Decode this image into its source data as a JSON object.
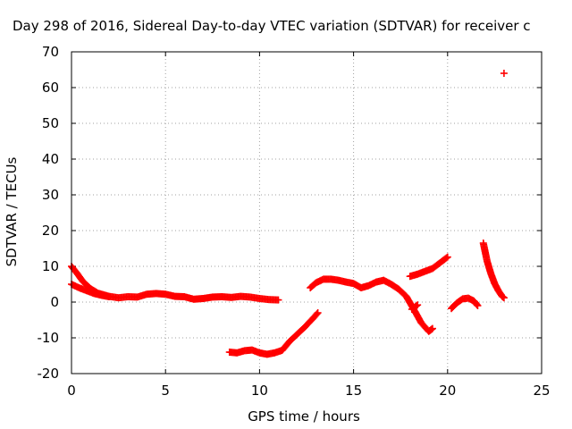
{
  "chart_data": {
    "type": "scatter",
    "title": "Day 298 of 2016, Sidereal Day-to-day VTEC variation (SDTVAR) for receiver c",
    "xlabel": "GPS time / hours",
    "ylabel": "SDTVAR / TECUs",
    "xlim": [
      0,
      25
    ],
    "ylim": [
      -20,
      70
    ],
    "xticks": [
      0,
      5,
      10,
      15,
      20,
      25
    ],
    "yticks": [
      -20,
      -10,
      0,
      10,
      20,
      30,
      40,
      50,
      60,
      70
    ],
    "grid": true,
    "marker": "plus",
    "color": "#ff0000",
    "series": [
      {
        "name": "s1",
        "points": [
          [
            0.0,
            10.0
          ],
          [
            0.3,
            8.0
          ],
          [
            0.6,
            5.8
          ],
          [
            1.0,
            3.8
          ],
          [
            1.4,
            2.5
          ],
          [
            2.0,
            1.6
          ],
          [
            2.5,
            1.2
          ],
          [
            3.0,
            1.5
          ],
          [
            3.5,
            1.4
          ],
          [
            4.0,
            2.2
          ],
          [
            4.5,
            2.4
          ],
          [
            5.0,
            2.2
          ],
          [
            5.5,
            1.6
          ],
          [
            6.0,
            1.5
          ],
          [
            6.5,
            0.8
          ],
          [
            7.0,
            1.0
          ],
          [
            7.5,
            1.4
          ],
          [
            8.0,
            1.5
          ],
          [
            8.5,
            1.3
          ],
          [
            9.0,
            1.6
          ],
          [
            9.5,
            1.4
          ],
          [
            10.0,
            1.0
          ],
          [
            10.5,
            0.7
          ],
          [
            11.0,
            0.6
          ]
        ]
      },
      {
        "name": "s2",
        "points": [
          [
            0.0,
            5.0
          ],
          [
            0.4,
            4.0
          ],
          [
            0.8,
            3.2
          ],
          [
            1.2,
            2.4
          ],
          [
            1.6,
            1.9
          ],
          [
            2.0,
            1.5
          ]
        ]
      },
      {
        "name": "s3",
        "points": [
          [
            8.4,
            -14.0
          ],
          [
            8.8,
            -14.2
          ],
          [
            9.2,
            -13.6
          ],
          [
            9.6,
            -13.4
          ],
          [
            10.0,
            -14.2
          ],
          [
            10.4,
            -14.6
          ],
          [
            10.8,
            -14.2
          ],
          [
            11.2,
            -13.5
          ],
          [
            11.6,
            -11.0
          ],
          [
            12.0,
            -9.0
          ],
          [
            12.4,
            -7.0
          ],
          [
            12.8,
            -4.8
          ],
          [
            13.1,
            -3.0
          ]
        ]
      },
      {
        "name": "s4",
        "points": [
          [
            12.7,
            4.0
          ],
          [
            13.0,
            5.4
          ],
          [
            13.4,
            6.4
          ],
          [
            13.8,
            6.4
          ],
          [
            14.2,
            6.1
          ],
          [
            14.6,
            5.6
          ],
          [
            15.0,
            5.2
          ],
          [
            15.4,
            4.0
          ],
          [
            15.8,
            4.6
          ],
          [
            16.2,
            5.6
          ],
          [
            16.6,
            6.1
          ],
          [
            17.0,
            5.0
          ],
          [
            17.4,
            3.6
          ],
          [
            17.8,
            1.6
          ],
          [
            18.2,
            -2.0
          ],
          [
            18.6,
            -5.8
          ],
          [
            19.0,
            -8.2
          ],
          [
            19.2,
            -7.4
          ]
        ]
      },
      {
        "name": "s5",
        "points": [
          [
            18.1,
            -2.0
          ],
          [
            18.4,
            -0.8
          ]
        ]
      },
      {
        "name": "s6",
        "points": [
          [
            18.0,
            7.2
          ],
          [
            18.4,
            7.8
          ],
          [
            18.8,
            8.6
          ],
          [
            19.2,
            9.4
          ],
          [
            19.6,
            11.0
          ],
          [
            20.0,
            12.6
          ]
        ]
      },
      {
        "name": "s7",
        "points": [
          [
            20.2,
            -1.8
          ],
          [
            20.5,
            -0.2
          ],
          [
            20.8,
            0.9
          ],
          [
            21.1,
            1.1
          ],
          [
            21.4,
            0.3
          ],
          [
            21.6,
            -1.0
          ]
        ]
      },
      {
        "name": "s8",
        "points": [
          [
            21.9,
            16.5
          ],
          [
            22.1,
            11.5
          ],
          [
            22.3,
            8.0
          ],
          [
            22.5,
            5.2
          ],
          [
            22.7,
            3.2
          ],
          [
            22.9,
            1.6
          ],
          [
            23.0,
            1.2
          ]
        ]
      },
      {
        "name": "s9",
        "points": [
          [
            23.0,
            64.0
          ]
        ]
      }
    ]
  }
}
